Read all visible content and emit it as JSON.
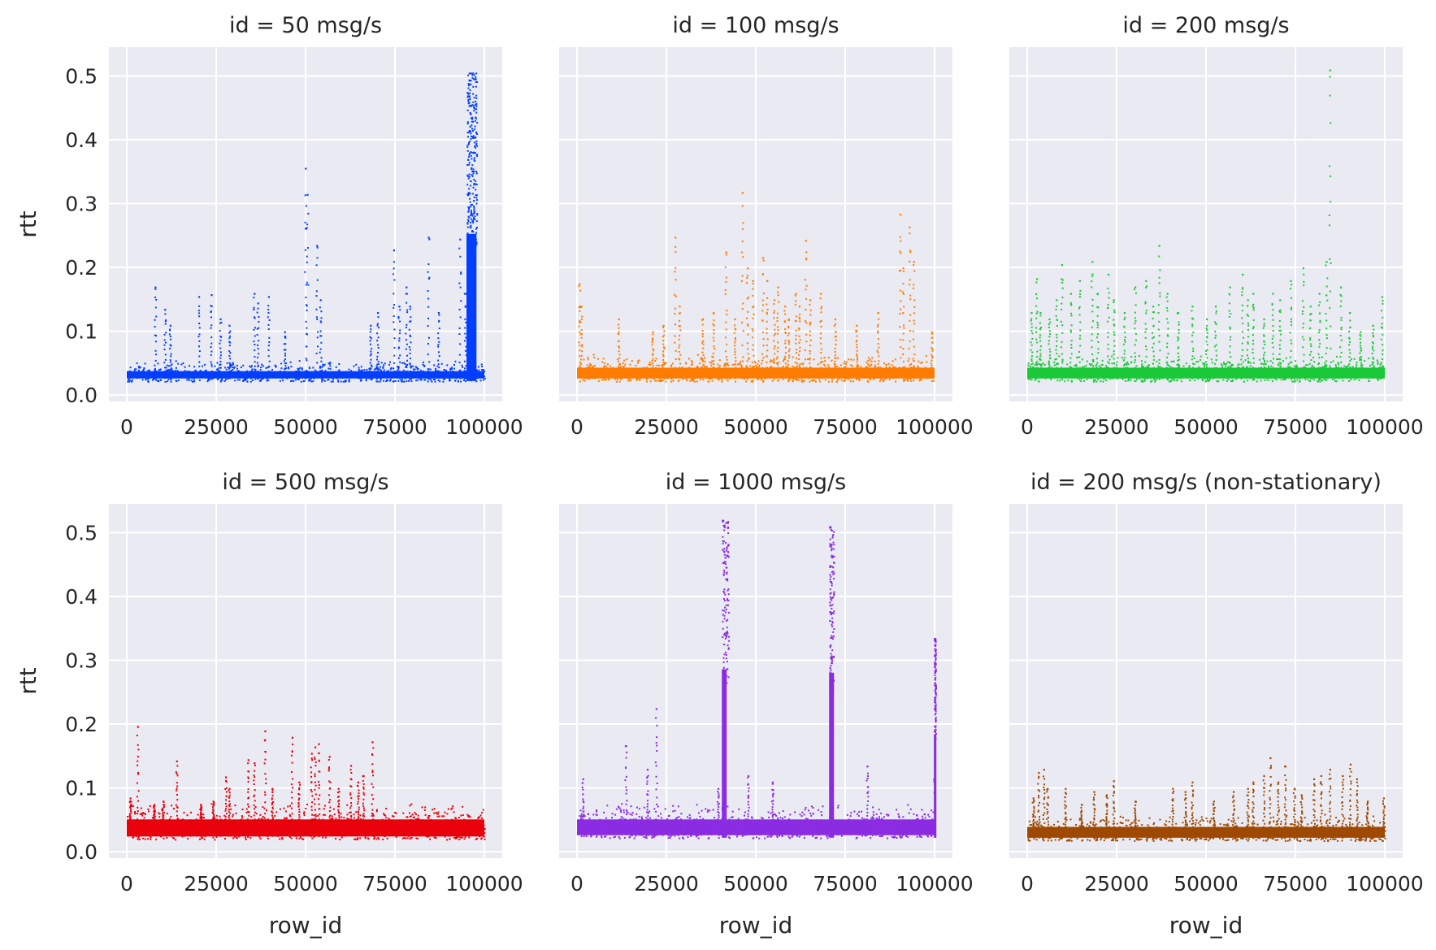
{
  "chart_data": {
    "type": "scatter",
    "layout": "facet-grid",
    "rows": 2,
    "cols": 3,
    "xlabel": "row_id",
    "ylabel": "rtt",
    "xlim": [
      -5000,
      105000
    ],
    "ylim": [
      -0.01,
      0.545
    ],
    "xticks": [
      0,
      25000,
      50000,
      75000,
      100000
    ],
    "yticks": [
      0.0,
      0.1,
      0.2,
      0.3,
      0.4,
      0.5
    ],
    "xtick_labels": [
      "0",
      "25000",
      "50000",
      "75000",
      "100000"
    ],
    "ytick_labels": [
      "0.0",
      "0.1",
      "0.2",
      "0.3",
      "0.4",
      "0.5"
    ],
    "grid": true,
    "sharex": true,
    "sharey": true,
    "panels": [
      {
        "title": "id = 50 msg/s",
        "color": "#023eff",
        "baseline": {
          "low": 0.022,
          "high": 0.048
        },
        "spikes": [
          {
            "x": 7800,
            "y": 0.17
          },
          {
            "x": 10500,
            "y": 0.135
          },
          {
            "x": 12000,
            "y": 0.11
          },
          {
            "x": 20000,
            "y": 0.155
          },
          {
            "x": 23500,
            "y": 0.158
          },
          {
            "x": 26000,
            "y": 0.12
          },
          {
            "x": 28500,
            "y": 0.11
          },
          {
            "x": 35500,
            "y": 0.16
          },
          {
            "x": 36500,
            "y": 0.145
          },
          {
            "x": 39500,
            "y": 0.155
          },
          {
            "x": 44000,
            "y": 0.1
          },
          {
            "x": 49800,
            "y": 0.356
          },
          {
            "x": 50300,
            "y": 0.315
          },
          {
            "x": 53000,
            "y": 0.235
          },
          {
            "x": 54000,
            "y": 0.15
          },
          {
            "x": 68000,
            "y": 0.11
          },
          {
            "x": 70000,
            "y": 0.13
          },
          {
            "x": 74500,
            "y": 0.228
          },
          {
            "x": 76000,
            "y": 0.14
          },
          {
            "x": 78000,
            "y": 0.17
          },
          {
            "x": 79000,
            "y": 0.14
          },
          {
            "x": 84200,
            "y": 0.248
          },
          {
            "x": 87000,
            "y": 0.13
          },
          {
            "x": 93000,
            "y": 0.245
          },
          {
            "x": 94500,
            "y": 0.16
          }
        ],
        "bursts": [
          {
            "x0": 95000,
            "x1": 97800,
            "peak": 0.505,
            "fill": true
          }
        ]
      },
      {
        "title": "id = 100 msg/s",
        "color": "#ff7c00",
        "baseline": {
          "low": 0.022,
          "high": 0.055
        },
        "spikes": [
          {
            "x": 500,
            "y": 0.175
          },
          {
            "x": 1000,
            "y": 0.14
          },
          {
            "x": 11500,
            "y": 0.12
          },
          {
            "x": 21000,
            "y": 0.1
          },
          {
            "x": 24000,
            "y": 0.11
          },
          {
            "x": 27300,
            "y": 0.248
          },
          {
            "x": 28500,
            "y": 0.14
          },
          {
            "x": 35000,
            "y": 0.12
          },
          {
            "x": 38000,
            "y": 0.13
          },
          {
            "x": 41500,
            "y": 0.225
          },
          {
            "x": 44000,
            "y": 0.12
          },
          {
            "x": 46100,
            "y": 0.318
          },
          {
            "x": 47500,
            "y": 0.2
          },
          {
            "x": 49000,
            "y": 0.18
          },
          {
            "x": 51800,
            "y": 0.216
          },
          {
            "x": 53000,
            "y": 0.18
          },
          {
            "x": 55000,
            "y": 0.15
          },
          {
            "x": 56000,
            "y": 0.17
          },
          {
            "x": 58000,
            "y": 0.14
          },
          {
            "x": 59000,
            "y": 0.12
          },
          {
            "x": 61000,
            "y": 0.16
          },
          {
            "x": 62000,
            "y": 0.14
          },
          {
            "x": 63800,
            "y": 0.243
          },
          {
            "x": 65000,
            "y": 0.15
          },
          {
            "x": 68000,
            "y": 0.16
          },
          {
            "x": 72000,
            "y": 0.12
          },
          {
            "x": 78000,
            "y": 0.11
          },
          {
            "x": 84000,
            "y": 0.13
          },
          {
            "x": 90200,
            "y": 0.284
          },
          {
            "x": 91000,
            "y": 0.2
          },
          {
            "x": 92800,
            "y": 0.264
          },
          {
            "x": 94000,
            "y": 0.21
          },
          {
            "x": 99000,
            "y": 0.1
          }
        ],
        "bursts": []
      },
      {
        "title": "id = 200 msg/s",
        "color": "#1ac938",
        "baseline": {
          "low": 0.022,
          "high": 0.055
        },
        "spikes": [
          {
            "x": 1000,
            "y": 0.13
          },
          {
            "x": 2500,
            "y": 0.183
          },
          {
            "x": 3500,
            "y": 0.13
          },
          {
            "x": 6000,
            "y": 0.12
          },
          {
            "x": 8000,
            "y": 0.15
          },
          {
            "x": 9500,
            "y": 0.205
          },
          {
            "x": 12000,
            "y": 0.16
          },
          {
            "x": 14500,
            "y": 0.18
          },
          {
            "x": 18000,
            "y": 0.21
          },
          {
            "x": 19500,
            "y": 0.16
          },
          {
            "x": 22500,
            "y": 0.19
          },
          {
            "x": 24000,
            "y": 0.15
          },
          {
            "x": 27000,
            "y": 0.13
          },
          {
            "x": 30000,
            "y": 0.17
          },
          {
            "x": 33000,
            "y": 0.18
          },
          {
            "x": 35000,
            "y": 0.14
          },
          {
            "x": 36700,
            "y": 0.235
          },
          {
            "x": 39000,
            "y": 0.16
          },
          {
            "x": 42000,
            "y": 0.13
          },
          {
            "x": 46000,
            "y": 0.14
          },
          {
            "x": 50000,
            "y": 0.12
          },
          {
            "x": 52500,
            "y": 0.14
          },
          {
            "x": 56500,
            "y": 0.17
          },
          {
            "x": 60000,
            "y": 0.19
          },
          {
            "x": 61500,
            "y": 0.15
          },
          {
            "x": 63000,
            "y": 0.16
          },
          {
            "x": 66000,
            "y": 0.12
          },
          {
            "x": 68500,
            "y": 0.16
          },
          {
            "x": 70500,
            "y": 0.15
          },
          {
            "x": 73500,
            "y": 0.18
          },
          {
            "x": 77000,
            "y": 0.2
          },
          {
            "x": 79000,
            "y": 0.14
          },
          {
            "x": 81500,
            "y": 0.16
          },
          {
            "x": 83500,
            "y": 0.21
          },
          {
            "x": 84500,
            "y": 0.51
          },
          {
            "x": 87500,
            "y": 0.17
          },
          {
            "x": 90000,
            "y": 0.13
          },
          {
            "x": 93000,
            "y": 0.1
          },
          {
            "x": 96500,
            "y": 0.11
          },
          {
            "x": 99000,
            "y": 0.155
          }
        ],
        "bursts": []
      },
      {
        "title": "id = 500 msg/s",
        "color": "#e8000b",
        "baseline": {
          "low": 0.02,
          "high": 0.065
        },
        "spikes": [
          {
            "x": 800,
            "y": 0.085
          },
          {
            "x": 2900,
            "y": 0.197
          },
          {
            "x": 7500,
            "y": 0.075
          },
          {
            "x": 10000,
            "y": 0.08
          },
          {
            "x": 13800,
            "y": 0.143
          },
          {
            "x": 20500,
            "y": 0.075
          },
          {
            "x": 24000,
            "y": 0.08
          },
          {
            "x": 27500,
            "y": 0.118
          },
          {
            "x": 28500,
            "y": 0.1
          },
          {
            "x": 33800,
            "y": 0.145
          },
          {
            "x": 35500,
            "y": 0.14
          },
          {
            "x": 38500,
            "y": 0.19
          },
          {
            "x": 40500,
            "y": 0.1
          },
          {
            "x": 46100,
            "y": 0.18
          },
          {
            "x": 48000,
            "y": 0.11
          },
          {
            "x": 51500,
            "y": 0.155
          },
          {
            "x": 52500,
            "y": 0.165
          },
          {
            "x": 53500,
            "y": 0.17
          },
          {
            "x": 56500,
            "y": 0.15
          },
          {
            "x": 59000,
            "y": 0.1
          },
          {
            "x": 62500,
            "y": 0.136
          },
          {
            "x": 64500,
            "y": 0.11
          },
          {
            "x": 66000,
            "y": 0.12
          },
          {
            "x": 68500,
            "y": 0.173
          }
        ],
        "bursts": []
      },
      {
        "title": "id = 1000 msg/s",
        "color": "#8b2be2",
        "baseline": {
          "low": 0.022,
          "high": 0.065
        },
        "spikes": [
          {
            "x": 1500,
            "y": 0.115
          },
          {
            "x": 13500,
            "y": 0.167
          },
          {
            "x": 19500,
            "y": 0.13
          },
          {
            "x": 22000,
            "y": 0.225
          },
          {
            "x": 39300,
            "y": 0.1
          },
          {
            "x": 47700,
            "y": 0.12
          },
          {
            "x": 54500,
            "y": 0.11
          },
          {
            "x": 81000,
            "y": 0.135
          },
          {
            "x": 99800,
            "y": 0.135
          }
        ],
        "bursts": [
          {
            "x0": 40500,
            "x1": 43500,
            "peak": 0.52,
            "fill": false
          },
          {
            "x0": 70500,
            "x1": 72500,
            "peak": 0.51,
            "fill": false
          },
          {
            "x0": 99800,
            "x1": 100500,
            "peak": 0.335,
            "fill": false
          }
        ]
      },
      {
        "title": "id = 200 msg/s (non-stationary)",
        "color": "#9f4800",
        "baseline": {
          "low": 0.018,
          "high": 0.05
        },
        "spikes": [
          {
            "x": 1500,
            "y": 0.085
          },
          {
            "x": 3000,
            "y": 0.125
          },
          {
            "x": 4500,
            "y": 0.13
          },
          {
            "x": 5500,
            "y": 0.1
          },
          {
            "x": 10500,
            "y": 0.1
          },
          {
            "x": 15000,
            "y": 0.075
          },
          {
            "x": 18500,
            "y": 0.095
          },
          {
            "x": 22000,
            "y": 0.09
          },
          {
            "x": 24000,
            "y": 0.112
          },
          {
            "x": 30000,
            "y": 0.08
          },
          {
            "x": 40500,
            "y": 0.1
          },
          {
            "x": 44000,
            "y": 0.095
          },
          {
            "x": 46000,
            "y": 0.11
          },
          {
            "x": 52000,
            "y": 0.08
          },
          {
            "x": 57500,
            "y": 0.095
          },
          {
            "x": 61500,
            "y": 0.1
          },
          {
            "x": 63000,
            "y": 0.11
          },
          {
            "x": 66000,
            "y": 0.12
          },
          {
            "x": 67800,
            "y": 0.148
          },
          {
            "x": 70000,
            "y": 0.11
          },
          {
            "x": 72000,
            "y": 0.135
          },
          {
            "x": 74500,
            "y": 0.1
          },
          {
            "x": 76500,
            "y": 0.09
          },
          {
            "x": 80000,
            "y": 0.115
          },
          {
            "x": 82000,
            "y": 0.12
          },
          {
            "x": 84500,
            "y": 0.13
          },
          {
            "x": 88000,
            "y": 0.12
          },
          {
            "x": 90200,
            "y": 0.138
          },
          {
            "x": 92000,
            "y": 0.115
          },
          {
            "x": 95000,
            "y": 0.08
          },
          {
            "x": 99500,
            "y": 0.085
          }
        ],
        "bursts": []
      }
    ]
  }
}
